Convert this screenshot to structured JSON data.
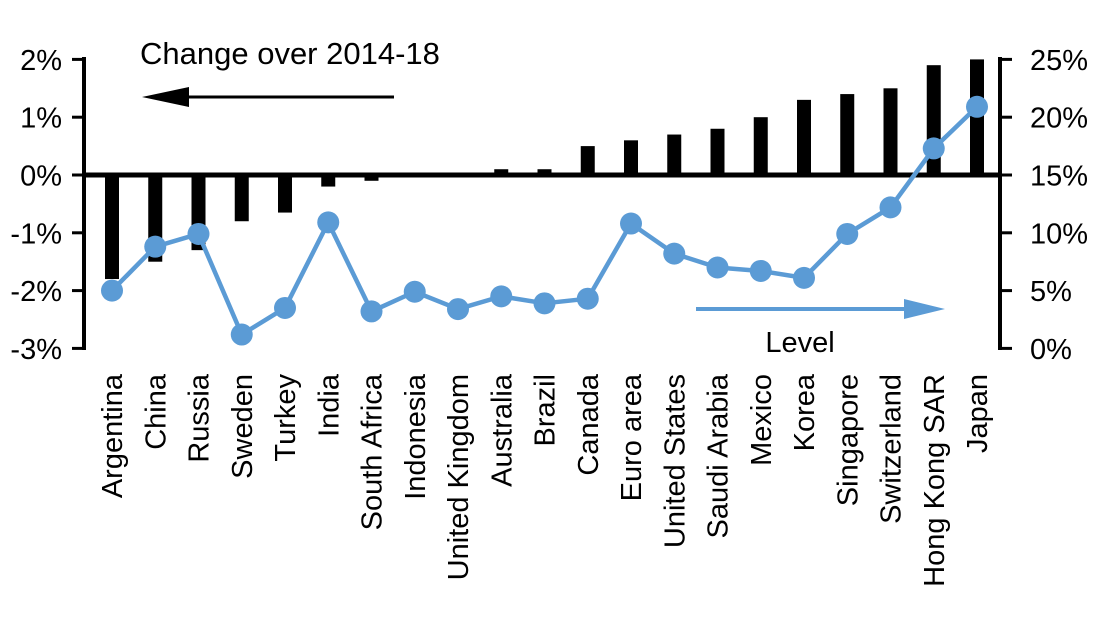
{
  "chart_data": {
    "type": "combo",
    "title": "",
    "categories": [
      "Argentina",
      "China",
      "Russia",
      "Sweden",
      "Turkey",
      "India",
      "South Africa",
      "Indonesia",
      "United Kingdom",
      "Australia",
      "Brazil",
      "Canada",
      "Euro area",
      "United States",
      "Saudi Arabia",
      "Mexico",
      "Korea",
      "Singapore",
      "Switzerland",
      "Hong Kong SAR",
      "Japan"
    ],
    "series": [
      {
        "name": "Change over 2014-18",
        "type": "bar",
        "axis": "left",
        "unit": "%",
        "color": "#000000",
        "values": [
          -1.8,
          -1.5,
          -1.3,
          -0.8,
          -0.65,
          -0.2,
          -0.1,
          0,
          0,
          0.1,
          0.1,
          0.5,
          0.6,
          0.7,
          0.8,
          1.0,
          1.3,
          1.4,
          1.5,
          1.9,
          2.0
        ]
      },
      {
        "name": "Level",
        "type": "line",
        "axis": "right",
        "unit": "%",
        "color": "#5B9BD5",
        "values": [
          5.0,
          8.8,
          9.9,
          1.2,
          3.5,
          10.9,
          3.2,
          4.9,
          3.4,
          4.5,
          3.9,
          4.3,
          10.8,
          8.2,
          7.0,
          6.7,
          6.1,
          9.9,
          12.2,
          17.3,
          20.9
        ]
      }
    ],
    "left_axis": {
      "tick_labels": [
        "2%",
        "1%",
        "0%",
        "-1%",
        "-2%",
        "-3%"
      ],
      "tick_values": [
        2,
        1,
        0,
        -1,
        -2,
        -3
      ],
      "min": -3,
      "max": 2
    },
    "right_axis": {
      "tick_labels": [
        "25%",
        "20%",
        "15%",
        "10%",
        "5%",
        "0%"
      ],
      "tick_values": [
        25,
        20,
        15,
        10,
        5,
        0
      ],
      "min": 0,
      "max": 25
    },
    "annotations": {
      "bar_label": "Change over 2014-18",
      "line_label": "Level"
    },
    "grid": false,
    "legend_position": "in-plot annotations with arrows"
  }
}
